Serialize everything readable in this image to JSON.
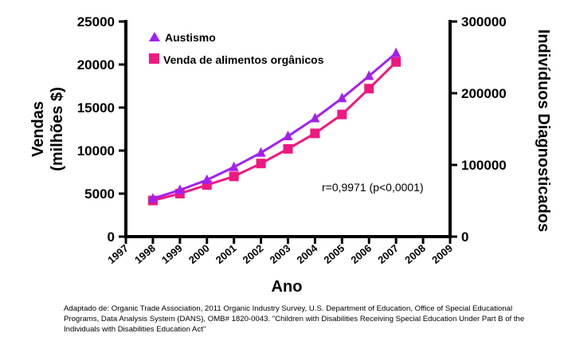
{
  "chart_data": {
    "type": "line",
    "categories": [
      "1997",
      "1998",
      "1999",
      "2000",
      "2001",
      "2002",
      "2003",
      "2004",
      "2005",
      "2006",
      "2007",
      "2008",
      "2009"
    ],
    "xlabel": "Ano",
    "ylabel_left": [
      "Vendas",
      "(milhões $)"
    ],
    "ylabel_right": "Indivíduos Diagnosticados",
    "ylim_left": [
      0,
      25000
    ],
    "ylim_right": [
      0,
      300000
    ],
    "yticks_left": [
      "0",
      "5000",
      "10000",
      "15000",
      "20000",
      "25000"
    ],
    "yticks_right": [
      "0",
      "100000",
      "200000",
      "300000"
    ],
    "grid": false,
    "legend_position": "top-left",
    "series": [
      {
        "name": "Austismo",
        "axis": "right",
        "marker": "triangle",
        "color": "#a31ff0",
        "x": [
          "1998",
          "1999",
          "2000",
          "2001",
          "2002",
          "2003",
          "2004",
          "2005",
          "2006",
          "2007"
        ],
        "values": [
          53000,
          65000,
          79000,
          97000,
          117000,
          140000,
          165000,
          193000,
          224000,
          256000
        ]
      },
      {
        "name": "Venda de alimentos orgânicos",
        "axis": "left",
        "marker": "square",
        "color": "#f0187f",
        "x": [
          "1998",
          "1999",
          "2000",
          "2001",
          "2002",
          "2003",
          "2004",
          "2005",
          "2006",
          "2007"
        ],
        "values": [
          4200,
          5000,
          6000,
          7000,
          8500,
          10200,
          12000,
          14200,
          17200,
          20300
        ]
      }
    ],
    "annotation": "r=0,9971 (p<0,0001)"
  },
  "caption": "Adaptado de: Organic Trade Association, 2011 Organic Industry Survey, U.S. Department of Education, Office of Special Educational Programs, Data Analysis System (DANS), OMB# 1820-0043. \"Children with Disabilities Receiving Special Education Under Part B of the Individuals with Disabilities Education Act\""
}
